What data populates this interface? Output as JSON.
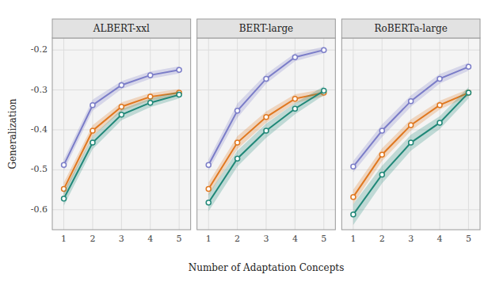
{
  "chart_data": [
    {
      "type": "line",
      "title": "ALBERT-xxl",
      "ylabel": "Generalization",
      "x": [
        1,
        2,
        3,
        4,
        5
      ],
      "series": [
        {
          "color": "#7b7dc8",
          "marker": "circle",
          "values": [
            -0.488,
            -0.338,
            -0.288,
            -0.263,
            -0.25
          ],
          "se": [
            0.014,
            0.014,
            0.01,
            0.009,
            0.009
          ]
        },
        {
          "color": "#e07820",
          "marker": "circle",
          "values": [
            -0.548,
            -0.402,
            -0.342,
            -0.317,
            -0.307
          ],
          "se": [
            0.016,
            0.014,
            0.011,
            0.009,
            0.009
          ]
        },
        {
          "color": "#208878",
          "marker": "circle",
          "values": [
            -0.572,
            -0.432,
            -0.362,
            -0.332,
            -0.312
          ],
          "se": [
            0.018,
            0.016,
            0.014,
            0.011,
            0.009
          ]
        }
      ],
      "xlim": [
        0.6,
        5.4
      ],
      "xticks": [
        1,
        2,
        3,
        4,
        5
      ],
      "ylim": [
        -0.65,
        -0.17
      ],
      "yticks": [
        -0.6,
        -0.5,
        -0.4,
        -0.3,
        -0.2
      ],
      "grid": true
    },
    {
      "type": "line",
      "title": "BERT-large",
      "xlabel": "Number of Adaptation Concepts",
      "x": [
        1,
        2,
        3,
        4,
        5
      ],
      "series": [
        {
          "color": "#7b7dc8",
          "marker": "circle",
          "values": [
            -0.488,
            -0.352,
            -0.272,
            -0.218,
            -0.2
          ],
          "se": [
            0.014,
            0.018,
            0.012,
            0.01,
            0.008
          ]
        },
        {
          "color": "#e07820",
          "marker": "circle",
          "values": [
            -0.548,
            -0.432,
            -0.368,
            -0.322,
            -0.307
          ],
          "se": [
            0.016,
            0.016,
            0.014,
            0.011,
            0.009
          ]
        },
        {
          "color": "#208878",
          "marker": "circle",
          "values": [
            -0.582,
            -0.472,
            -0.402,
            -0.347,
            -0.302
          ],
          "se": [
            0.022,
            0.02,
            0.018,
            0.014,
            0.011
          ]
        }
      ],
      "xlim": [
        0.6,
        5.4
      ],
      "xticks": [
        1,
        2,
        3,
        4,
        5
      ],
      "ylim": [
        -0.65,
        -0.17
      ],
      "yticks": [
        -0.6,
        -0.5,
        -0.4,
        -0.3,
        -0.2
      ],
      "grid": true,
      "tick_labels": "x"
    },
    {
      "type": "line",
      "title": "RoBERTa-large",
      "x": [
        1,
        2,
        3,
        4,
        5
      ],
      "series": [
        {
          "color": "#7b7dc8",
          "marker": "circle",
          "values": [
            -0.492,
            -0.402,
            -0.328,
            -0.272,
            -0.242
          ],
          "se": [
            0.014,
            0.016,
            0.014,
            0.012,
            0.01
          ]
        },
        {
          "color": "#e07820",
          "marker": "circle",
          "values": [
            -0.568,
            -0.462,
            -0.388,
            -0.338,
            -0.307
          ],
          "se": [
            0.018,
            0.016,
            0.014,
            0.011,
            0.009
          ]
        },
        {
          "color": "#208878",
          "marker": "circle",
          "values": [
            -0.612,
            -0.512,
            -0.432,
            -0.382,
            -0.307
          ],
          "se": [
            0.026,
            0.022,
            0.02,
            0.016,
            0.014
          ]
        }
      ],
      "xlim": [
        0.6,
        5.4
      ],
      "xticks": [
        1,
        2,
        3,
        4,
        5
      ],
      "ylim": [
        -0.65,
        -0.17
      ],
      "yticks": [
        -0.6,
        -0.5,
        -0.4,
        -0.3,
        -0.2
      ],
      "grid": true,
      "tick_labels": "x"
    }
  ]
}
